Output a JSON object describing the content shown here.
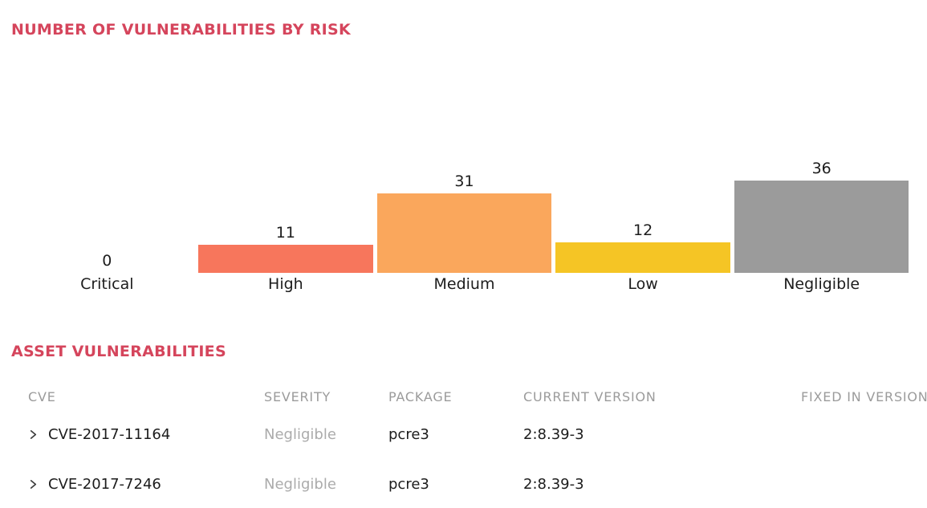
{
  "risk_chart_section": {
    "title": "NUMBER OF VULNERABILITIES BY RISK"
  },
  "chart_data": {
    "type": "bar",
    "title": "NUMBER OF VULNERABILITIES BY RISK",
    "categories": [
      "Critical",
      "High",
      "Medium",
      "Low",
      "Negligible"
    ],
    "values": [
      0,
      11,
      31,
      12,
      36
    ],
    "bar_colors": [
      null,
      "#F7765C",
      "#FAA75C",
      "#F5C525",
      "#9B9B9B"
    ],
    "value_labels": [
      "0",
      "11",
      "31",
      "12",
      "36"
    ],
    "ylim": [
      0,
      36
    ],
    "grid": false,
    "legend": "none",
    "orientation": "vertical"
  },
  "asset_table_section": {
    "title": "ASSET VULNERABILITIES",
    "columns": [
      "CVE",
      "SEVERITY",
      "PACKAGE",
      "CURRENT VERSION",
      "FIXED IN VERSION"
    ],
    "rows": [
      {
        "cve": "CVE-2017-11164",
        "severity": "Negligible",
        "package": "pcre3",
        "current_version": "2:8.39-3",
        "fixed_in_version": ""
      },
      {
        "cve": "CVE-2017-7246",
        "severity": "Negligible",
        "package": "pcre3",
        "current_version": "2:8.39-3",
        "fixed_in_version": ""
      }
    ]
  },
  "colors": {
    "section_title": "#D5455C",
    "bar_high": "#F7765C",
    "bar_medium": "#FAA75C",
    "bar_low": "#F5C525",
    "bar_negligible": "#9B9B9B",
    "table_header_text": "#9B9B9B",
    "severity_text": "#ABABAB",
    "row_divider": "#E7E7E7"
  }
}
